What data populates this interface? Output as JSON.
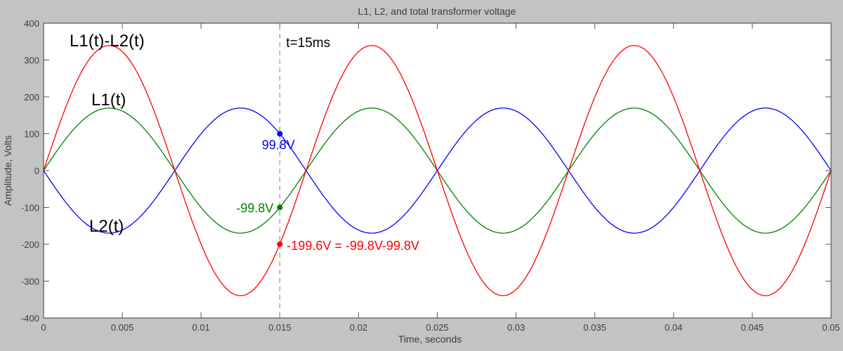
{
  "window": {
    "background": "#c3c3c3",
    "plot_background": "#ffffff",
    "axis_color": "#555555"
  },
  "chart_data": {
    "type": "line",
    "title": "L1, L2, and total transformer voltage",
    "xlabel": "Time, seconds",
    "ylabel": "Amplitude, Volts",
    "xlim": [
      0,
      0.05
    ],
    "ylim": [
      -400,
      400
    ],
    "x_ticks": [
      0,
      0.005,
      0.01,
      0.015,
      0.02,
      0.025,
      0.03,
      0.035,
      0.04,
      0.045,
      0.05
    ],
    "x_tick_labels": [
      "0",
      "0.005",
      "0.01",
      "0.015",
      "0.02",
      "0.025",
      "0.03",
      "0.035",
      "0.04",
      "0.045",
      "0.05"
    ],
    "y_ticks": [
      400,
      300,
      200,
      100,
      0,
      -100,
      -200,
      -300,
      -400
    ],
    "y_tick_labels": [
      "400",
      "300",
      "200",
      "100",
      "0",
      "-100",
      "-200",
      "-300",
      "-400"
    ],
    "grid": false,
    "waveform": "sine",
    "series": [
      {
        "name": "L1(t)",
        "color": "#008000",
        "amplitude_volts": 169.7,
        "frequency_hz": 60,
        "phase_deg": 0
      },
      {
        "name": "L2(t)",
        "color": "#0000ff",
        "amplitude_volts": 169.7,
        "frequency_hz": 60,
        "phase_deg": 180
      },
      {
        "name": "L1(t)-L2(t)",
        "color": "#ff0000",
        "amplitude_volts": 339.4,
        "frequency_hz": 60,
        "phase_deg": 0
      }
    ],
    "cursor": {
      "t": 0.015,
      "label": "t=15ms",
      "color": "#a6a6a6"
    },
    "markers": [
      {
        "series": "L2(t)",
        "t": 0.015,
        "value": 99.8,
        "label": "99.8V",
        "color": "#0000ff"
      },
      {
        "series": "L1(t)",
        "t": 0.015,
        "value": -99.8,
        "label": "-99.8V",
        "color": "#008000"
      },
      {
        "series": "L1(t)-L2(t)",
        "t": 0.015,
        "value": -199.6,
        "label": "-199.6V = -99.8V-99.8V",
        "color": "#ff0000"
      }
    ]
  }
}
